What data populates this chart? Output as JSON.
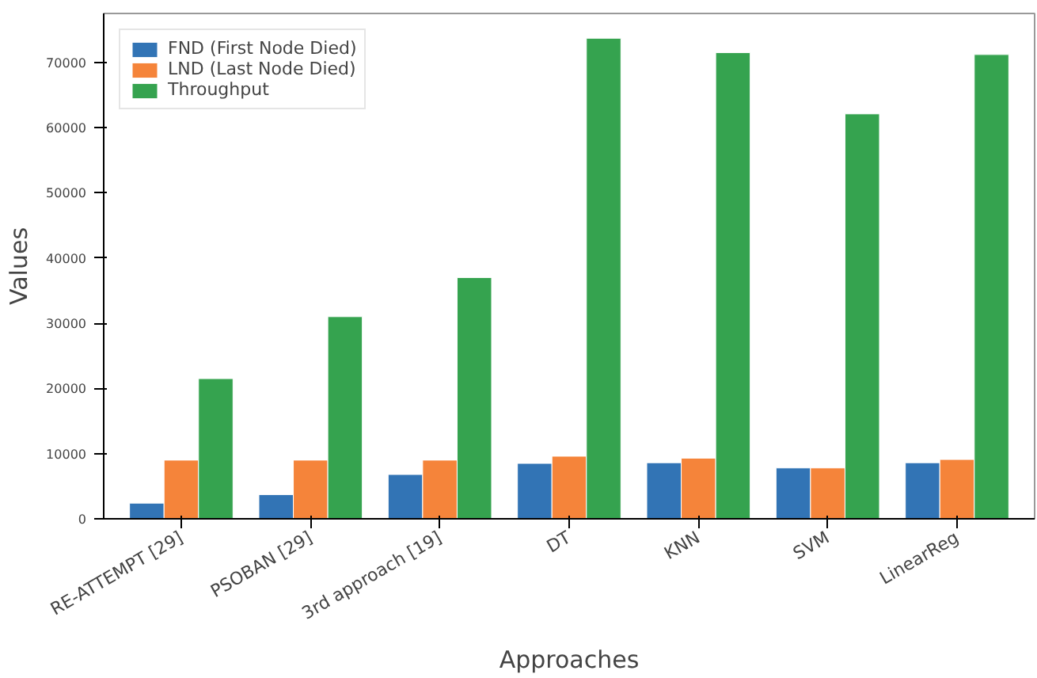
{
  "chart_data": {
    "type": "bar",
    "xlabel": "Approaches",
    "ylabel": "Values",
    "categories": [
      "RE-ATTEMPT [29]",
      "PSOBAN [29]",
      "3rd approach [19]",
      "DT",
      "KNN",
      "SVM",
      "LinearReg"
    ],
    "series": [
      {
        "name": "FND (First Node Died)",
        "color": "#3274b5",
        "values": [
          2400,
          3700,
          6800,
          8500,
          8600,
          7800,
          8600
        ]
      },
      {
        "name": "LND (Last Node Died)",
        "color": "#f5843a",
        "values": [
          9000,
          9000,
          9000,
          9600,
          9300,
          7800,
          9100
        ]
      },
      {
        "name": "Throughput",
        "color": "#35a34f",
        "values": [
          21500,
          31000,
          37000,
          73700,
          71500,
          62100,
          71200
        ]
      }
    ],
    "ylim": [
      0,
      77500
    ],
    "yticks": [
      0,
      10000,
      20000,
      30000,
      40000,
      50000,
      60000,
      70000
    ],
    "grid": false,
    "legend": "top left"
  }
}
